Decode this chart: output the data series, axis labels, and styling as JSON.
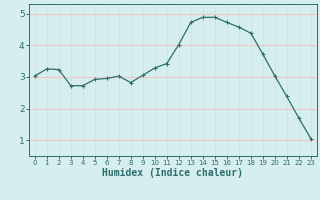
{
  "x": [
    0,
    1,
    2,
    3,
    4,
    5,
    6,
    7,
    8,
    9,
    10,
    11,
    12,
    13,
    14,
    15,
    16,
    17,
    18,
    19,
    20,
    21,
    22,
    23
  ],
  "y": [
    3.03,
    3.25,
    3.23,
    2.72,
    2.72,
    2.92,
    2.95,
    3.02,
    2.82,
    3.05,
    3.28,
    3.42,
    4.02,
    4.72,
    4.88,
    4.88,
    4.72,
    4.57,
    4.38,
    3.72,
    3.03,
    2.38,
    1.7,
    1.05
  ],
  "line_color": "#2d6e6e",
  "marker_size": 3,
  "bg_color": "#d7eeee",
  "grid_color_x": "#c8e8e8",
  "grid_color_y": "#f0c8c8",
  "xlabel": "Humidex (Indice chaleur)",
  "xlabel_fontsize": 7,
  "yticks": [
    1,
    2,
    3,
    4,
    5
  ],
  "xticks": [
    0,
    1,
    2,
    3,
    4,
    5,
    6,
    7,
    8,
    9,
    10,
    11,
    12,
    13,
    14,
    15,
    16,
    17,
    18,
    19,
    20,
    21,
    22,
    23
  ],
  "ylim": [
    0.5,
    5.3
  ],
  "xlim": [
    -0.5,
    23.5
  ]
}
